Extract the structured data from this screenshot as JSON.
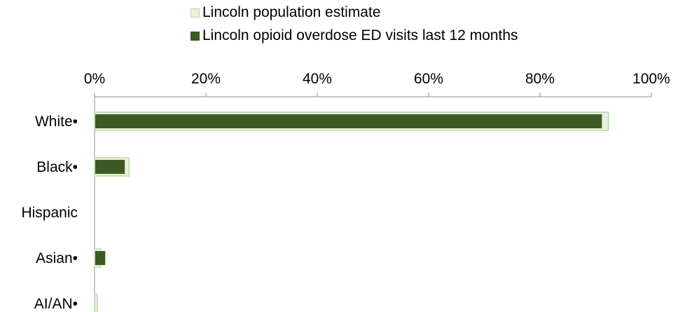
{
  "colors": {
    "population_fill": "#e7f1dd",
    "population_stroke": "#bcd9a6",
    "ed_fill": "#3d5a23",
    "axis": "#8c8c8c"
  },
  "chart_data": {
    "type": "bar",
    "orientation": "horizontal",
    "title": "",
    "xlabel": "",
    "ylabel": "",
    "xlim": [
      0,
      100
    ],
    "x_ticks": [
      "0%",
      "20%",
      "40%",
      "60%",
      "80%",
      "100%"
    ],
    "x_axis_position": "top",
    "grid": false,
    "legend_position": "top",
    "categories": [
      "White•",
      "Black•",
      "Hispanic",
      "Asian•",
      "AI/AN•"
    ],
    "series": [
      {
        "name": "Lincoln population estimate",
        "values": [
          92.3,
          6.2,
          0,
          1.1,
          0.5
        ]
      },
      {
        "name": "Lincoln opioid overdose ED visits last 12 months",
        "values": [
          91.0,
          5.3,
          0,
          1.8,
          0
        ]
      }
    ]
  }
}
